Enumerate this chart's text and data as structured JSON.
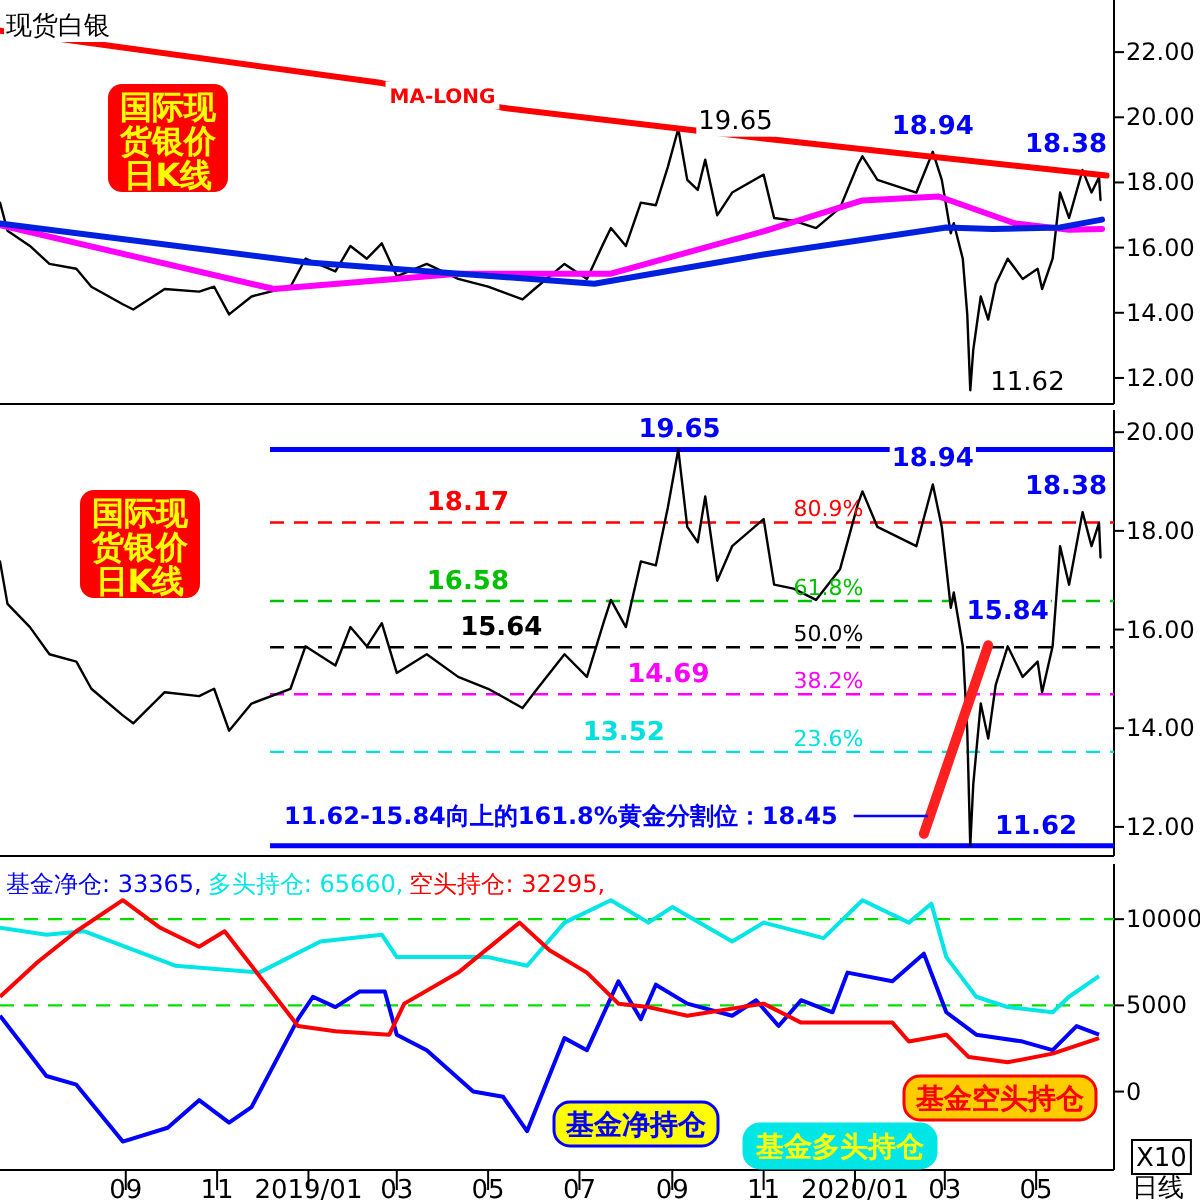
{
  "chart_data": [
    {
      "type": "line",
      "title": "现货白银",
      "xlim": [
        "2018-06-09",
        "2020-06-22"
      ],
      "ylim": [
        11.2,
        23.6
      ],
      "tick_labels": "y",
      "yticks": [
        {
          "value": 12,
          "label": "12.00"
        },
        {
          "value": 14,
          "label": "14.00"
        },
        {
          "value": 16,
          "label": "16.00"
        },
        {
          "value": 18,
          "label": "18.00"
        },
        {
          "value": 20,
          "label": "20.00"
        },
        {
          "value": 22,
          "label": "22.00"
        }
      ],
      "series": [
        {
          "color": "#000000",
          "x": [
            "2018-06-09",
            "2018-06-14",
            "2018-06-29",
            "2018-07-12",
            "2018-07-30",
            "2018-08-09",
            "2018-08-30",
            "2018-09-06",
            "2018-09-27",
            "2018-10-20",
            "2018-10-30",
            "2018-11-09",
            "2018-11-24",
            "2018-12-20",
            "2018-12-30",
            "2019-01-19",
            "2019-01-29",
            "2019-02-09",
            "2019-02-19",
            "2019-03-01",
            "2019-03-21",
            "2019-04-11",
            "2019-05-01",
            "2019-05-24",
            "2019-06-01",
            "2019-06-21",
            "2019-07-06",
            "2019-07-17",
            "2019-07-22",
            "2019-08-01",
            "2019-08-11",
            "2019-08-21",
            "2019-08-29",
            "2019-09-05",
            "2019-09-11",
            "2019-09-18",
            "2019-09-23",
            "2019-10-01",
            "2019-10-11",
            "2019-11-01",
            "2019-11-08",
            "2019-11-21",
            "2019-12-06",
            "2019-12-22",
            "2020-01-03",
            "2020-01-06",
            "2020-01-16",
            "2020-02-11",
            "2020-02-22",
            "2020-02-28",
            "2020-03-05",
            "2020-03-07",
            "2020-03-13",
            "2020-03-16",
            "2020-03-18",
            "2020-03-20",
            "2020-03-25",
            "2020-03-30",
            "2020-04-04",
            "2020-04-12",
            "2020-04-22",
            "2020-05-02",
            "2020-05-05",
            "2020-05-12",
            "2020-05-17",
            "2020-05-23",
            "2020-06-01",
            "2020-06-07",
            "2020-06-12",
            "2020-06-13"
          ],
          "values": [
            17.38,
            16.52,
            16.05,
            15.5,
            15.35,
            14.8,
            14.26,
            14.1,
            14.73,
            14.65,
            14.8,
            13.95,
            14.5,
            14.8,
            15.66,
            15.27,
            16.05,
            15.66,
            16.13,
            15.12,
            15.5,
            15.04,
            14.8,
            14.41,
            14.73,
            15.5,
            15.04,
            16.13,
            16.6,
            16.05,
            17.38,
            17.3,
            18.47,
            19.65,
            18.08,
            17.77,
            18.7,
            16.99,
            17.69,
            18.24,
            16.91,
            16.83,
            16.6,
            17.22,
            18.55,
            18.8,
            18.08,
            17.69,
            18.94,
            18.08,
            16.44,
            16.75,
            15.66,
            13.95,
            11.62,
            12.86,
            14.5,
            13.79,
            14.88,
            15.66,
            15.04,
            15.35,
            14.73,
            15.66,
            17.69,
            16.91,
            18.38,
            17.69,
            18.16,
            17.46
          ]
        },
        {
          "name": "MA-LONG",
          "color": "#ff0000",
          "x": [
            "2018-06-09",
            "2019-02-19",
            "2019-05-11",
            "2019-11-01",
            "2020-06-17"
          ],
          "values": [
            22.66,
            21.05,
            20.29,
            19.35,
            18.21
          ]
        },
        {
          "color": "#ff00ff",
          "x": [
            "2018-06-09",
            "2018-12-09",
            "2019-04-11",
            "2019-07-22",
            "2019-11-01",
            "2020-01-06",
            "2020-02-26",
            "2020-04-17",
            "2020-05-23",
            "2020-06-14"
          ],
          "values": [
            16.69,
            14.73,
            15.2,
            15.2,
            16.5,
            17.45,
            17.57,
            16.74,
            16.55,
            16.57
          ]
        },
        {
          "color": "#0020e0",
          "x": [
            "2018-06-09",
            "2018-12-30",
            "2019-07-11",
            "2019-11-01",
            "2020-03-02",
            "2020-04-02",
            "2020-05-17",
            "2020-06-14"
          ],
          "values": [
            16.74,
            15.55,
            14.89,
            15.79,
            16.62,
            16.57,
            16.62,
            16.86
          ]
        }
      ],
      "annotations": [
        "国际现货银价日K线",
        {
          "text": "19.65",
          "x": "2019-09-05",
          "y": 19.65
        },
        {
          "text": "18.94",
          "x": "2020-02-22",
          "y": 18.94
        },
        {
          "text": "18.38",
          "x": "2020-06-01",
          "y": 18.38
        },
        {
          "text": "11.62",
          "x": "2020-03-18",
          "y": 11.62
        }
      ]
    },
    {
      "type": "line",
      "xlim": [
        "2018-06-09",
        "2020-06-22"
      ],
      "ylim": [
        11.41,
        20.45
      ],
      "tick_labels": "y",
      "yticks": [
        {
          "value": 12,
          "label": "12.00"
        },
        {
          "value": 14,
          "label": "14.00"
        },
        {
          "value": 16,
          "label": "16.00"
        },
        {
          "value": 18,
          "label": "18.00"
        },
        {
          "value": 20,
          "label": "20.00"
        }
      ],
      "series": [
        {
          "color": "#000000",
          "x": [
            "2018-06-09",
            "2018-06-14",
            "2018-06-29",
            "2018-07-12",
            "2018-07-30",
            "2018-08-09",
            "2018-08-30",
            "2018-09-06",
            "2018-09-27",
            "2018-10-20",
            "2018-10-30",
            "2018-11-09",
            "2018-11-24",
            "2018-12-20",
            "2018-12-30",
            "2019-01-19",
            "2019-01-29",
            "2019-02-09",
            "2019-02-19",
            "2019-03-01",
            "2019-03-21",
            "2019-04-11",
            "2019-05-01",
            "2019-05-24",
            "2019-06-01",
            "2019-06-21",
            "2019-07-06",
            "2019-07-17",
            "2019-07-22",
            "2019-08-01",
            "2019-08-11",
            "2019-08-21",
            "2019-08-29",
            "2019-09-05",
            "2019-09-11",
            "2019-09-18",
            "2019-09-23",
            "2019-10-01",
            "2019-10-11",
            "2019-11-01",
            "2019-11-08",
            "2019-11-21",
            "2019-12-06",
            "2019-12-22",
            "2020-01-03",
            "2020-01-06",
            "2020-01-16",
            "2020-02-11",
            "2020-02-22",
            "2020-02-28",
            "2020-03-05",
            "2020-03-07",
            "2020-03-13",
            "2020-03-16",
            "2020-03-18",
            "2020-03-20",
            "2020-03-25",
            "2020-03-30",
            "2020-04-04",
            "2020-04-12",
            "2020-04-22",
            "2020-05-02",
            "2020-05-05",
            "2020-05-12",
            "2020-05-17",
            "2020-05-23",
            "2020-06-01",
            "2020-06-07",
            "2020-06-12",
            "2020-06-13"
          ],
          "values": [
            17.38,
            16.52,
            16.05,
            15.5,
            15.35,
            14.8,
            14.26,
            14.1,
            14.73,
            14.65,
            14.8,
            13.95,
            14.5,
            14.8,
            15.66,
            15.27,
            16.05,
            15.66,
            16.13,
            15.12,
            15.5,
            15.04,
            14.8,
            14.41,
            14.73,
            15.5,
            15.04,
            16.13,
            16.6,
            16.05,
            17.38,
            17.3,
            18.47,
            19.65,
            18.08,
            17.77,
            18.7,
            16.99,
            17.69,
            18.24,
            16.91,
            16.83,
            16.6,
            17.22,
            18.55,
            18.8,
            18.08,
            17.69,
            18.94,
            18.08,
            16.44,
            16.75,
            15.66,
            13.95,
            11.62,
            12.86,
            14.5,
            13.79,
            14.88,
            15.66,
            15.04,
            15.35,
            14.73,
            15.66,
            17.69,
            16.91,
            18.38,
            17.69,
            18.16,
            17.46
          ]
        },
        {
          "type": "line",
          "color": "#ff2020",
          "x": [
            "2020-02-16",
            "2020-03-30"
          ],
          "values": [
            11.86,
            15.68
          ]
        }
      ],
      "ref_lines": [
        {
          "axis": "y",
          "value": 19.65,
          "label": "19.65",
          "color": "#0000ff",
          "line_style": "solid"
        },
        {
          "axis": "y",
          "value": 18.17,
          "label": "18.17",
          "color": "#ff0000",
          "line_style": "dashed"
        },
        {
          "axis": "y",
          "value": 16.58,
          "label": "16.58",
          "color": "#00c000",
          "line_style": "dashed"
        },
        {
          "axis": "y",
          "value": 15.64,
          "label": "15.64",
          "color": "#000000",
          "line_style": "dashed"
        },
        {
          "axis": "y",
          "value": 14.69,
          "label": "14.69",
          "color": "#ff00ff",
          "line_style": "dashed"
        },
        {
          "axis": "y",
          "value": 13.52,
          "label": "13.52",
          "color": "#00e0e0",
          "line_style": "dashed"
        },
        {
          "axis": "y",
          "value": 11.62,
          "label": "11.62",
          "color": "#0000ff",
          "line_style": "solid"
        }
      ],
      "annotations": [
        "国际现货银价日K线",
        "11.62-15.84向上的161.8%黄金分割位：18.45",
        {
          "text": "18.94",
          "x": "2020-02-22",
          "y": 18.94
        },
        {
          "text": "18.38",
          "x": "2020-06-01",
          "y": 18.38
        },
        {
          "text": "15.84",
          "x": "2020-04-12",
          "y": 15.84
        },
        {
          "text": "80.9%",
          "x": "2019-11-21",
          "y": 18.17
        },
        {
          "text": "61.8%",
          "x": "2019-11-21",
          "y": 16.58
        },
        {
          "text": "50.0%",
          "x": "2019-11-21",
          "y": 15.64
        },
        {
          "text": "38.2%",
          "x": "2019-11-21",
          "y": 14.69
        },
        {
          "text": "23.6%",
          "x": "2019-11-21",
          "y": 13.52
        }
      ]
    },
    {
      "type": "line",
      "xlim": [
        "2018-06-09",
        "2020-06-22"
      ],
      "ylim": [
        -4550,
        13200
      ],
      "yticks": [
        0,
        5000,
        10000
      ],
      "xticks": [
        {
          "value": "2018-09-01",
          "label": "09"
        },
        {
          "value": "2018-11-01",
          "label": "11"
        },
        {
          "value": "2019-01-01",
          "label": "2019/01"
        },
        {
          "value": "2019-03-01",
          "label": "03"
        },
        {
          "value": "2019-05-01",
          "label": "05"
        },
        {
          "value": "2019-07-01",
          "label": "07"
        },
        {
          "value": "2019-09-01",
          "label": "09"
        },
        {
          "value": "2019-11-01",
          "label": "11"
        },
        {
          "value": "2020-01-01",
          "label": "2020/01"
        },
        {
          "value": "2020-03-01",
          "label": "03"
        },
        {
          "value": "2020-05-01",
          "label": "05"
        }
      ],
      "series": [
        {
          "name": "基金净持仓",
          "color": "#0000ff",
          "x": [
            "2018-06-09",
            "2018-07-10",
            "2018-07-30",
            "2018-08-30",
            "2018-09-29",
            "2018-10-20",
            "2018-11-09",
            "2018-11-24",
            "2018-12-25",
            "2019-01-04",
            "2019-01-19",
            "2019-02-04",
            "2019-02-21",
            "2019-03-01",
            "2019-03-21",
            "2019-04-21",
            "2019-05-11",
            "2019-05-27",
            "2019-06-21",
            "2019-07-06",
            "2019-07-27",
            "2019-08-11",
            "2019-08-21",
            "2019-09-11",
            "2019-10-11",
            "2019-10-27",
            "2019-11-11",
            "2019-11-26",
            "2019-12-17",
            "2019-12-27",
            "2020-01-26",
            "2020-02-16",
            "2020-03-02",
            "2020-03-22",
            "2020-04-22",
            "2020-05-12",
            "2020-05-28",
            "2020-06-12"
          ],
          "values": [
            4400,
            900,
            400,
            -2900,
            -2100,
            -500,
            -1800,
            -900,
            4200,
            5500,
            4900,
            5800,
            5800,
            3300,
            2400,
            0,
            -300,
            -2300,
            3100,
            2400,
            6400,
            4200,
            6200,
            5100,
            4400,
            5300,
            3800,
            5300,
            4600,
            6900,
            6400,
            8000,
            4600,
            3300,
            2900,
            2400,
            3800,
            3300
          ]
        },
        {
          "name": "基金多头持仓",
          "color": "#00e5e5",
          "x": [
            "2018-06-09",
            "2018-07-10",
            "2018-08-04",
            "2018-10-04",
            "2018-11-29",
            "2019-01-09",
            "2019-02-19",
            "2019-03-01",
            "2019-05-01",
            "2019-05-27",
            "2019-06-21",
            "2019-07-22",
            "2019-08-16",
            "2019-09-01",
            "2019-10-11",
            "2019-11-01",
            "2019-12-11",
            "2020-01-06",
            "2020-02-06",
            "2020-02-21",
            "2020-03-02",
            "2020-03-22",
            "2020-04-12",
            "2020-05-12",
            "2020-05-23",
            "2020-06-12"
          ],
          "values": [
            9500,
            9100,
            9300,
            7300,
            6900,
            8700,
            9100,
            7800,
            7800,
            7300,
            9800,
            11100,
            9800,
            10700,
            8700,
            9800,
            8900,
            11100,
            9800,
            10900,
            7800,
            5500,
            4900,
            4600,
            5500,
            6700
          ]
        },
        {
          "name": "基金空头持仓",
          "color": "#ff0000",
          "x": [
            "2018-06-09",
            "2018-07-04",
            "2018-07-30",
            "2018-08-30",
            "2018-09-24",
            "2018-10-20",
            "2018-11-06",
            "2018-11-24",
            "2018-12-25",
            "2019-01-19",
            "2019-02-24",
            "2019-03-06",
            "2019-04-11",
            "2019-05-22",
            "2019-06-11",
            "2019-07-06",
            "2019-07-27",
            "2019-08-16",
            "2019-09-11",
            "2019-11-01",
            "2019-11-26",
            "2019-12-22",
            "2020-01-26",
            "2020-02-06",
            "2020-03-02",
            "2020-03-17",
            "2020-04-12",
            "2020-05-12",
            "2020-06-12"
          ],
          "values": [
            5500,
            7500,
            9300,
            11100,
            9500,
            8400,
            9300,
            7300,
            3800,
            3500,
            3300,
            5100,
            6900,
            9800,
            8200,
            6900,
            5100,
            4900,
            4400,
            5100,
            4000,
            4000,
            4000,
            2900,
            3300,
            2000,
            1700,
            2200,
            3100
          ]
        }
      ],
      "ref_lines": [
        {
          "axis": "y",
          "value": 10000,
          "color": "#00e000",
          "line_style": "dashed"
        },
        {
          "axis": "y",
          "value": 5000,
          "color": "#00e000",
          "line_style": "dashed"
        }
      ],
      "annotations": [
        "基金净仓: 33365,",
        "多头持仓: 65660,",
        "空头持仓: 32295,",
        "X10",
        "日线"
      ]
    }
  ]
}
